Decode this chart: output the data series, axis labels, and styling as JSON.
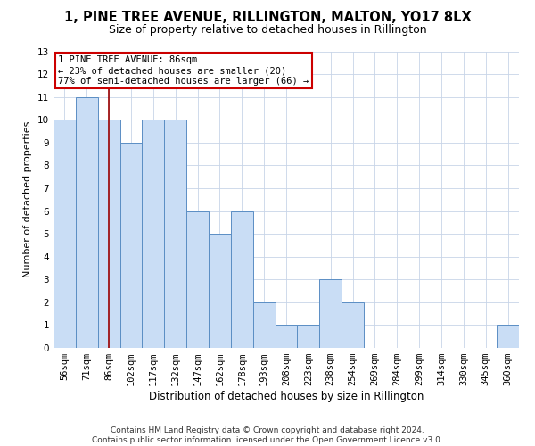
{
  "title_line1": "1, PINE TREE AVENUE, RILLINGTON, MALTON, YO17 8LX",
  "title_line2": "Size of property relative to detached houses in Rillington",
  "xlabel": "Distribution of detached houses by size in Rillington",
  "ylabel": "Number of detached properties",
  "categories": [
    "56sqm",
    "71sqm",
    "86sqm",
    "102sqm",
    "117sqm",
    "132sqm",
    "147sqm",
    "162sqm",
    "178sqm",
    "193sqm",
    "208sqm",
    "223sqm",
    "238sqm",
    "254sqm",
    "269sqm",
    "284sqm",
    "299sqm",
    "314sqm",
    "330sqm",
    "345sqm",
    "360sqm"
  ],
  "values": [
    10,
    11,
    10,
    9,
    10,
    10,
    6,
    5,
    6,
    2,
    1,
    1,
    3,
    2,
    0,
    0,
    0,
    0,
    0,
    0,
    1
  ],
  "bar_color": "#c9ddf5",
  "bar_edge_color": "#5b8ec4",
  "highlight_index": 2,
  "highlight_line_color": "#990000",
  "annotation_text": "1 PINE TREE AVENUE: 86sqm\n← 23% of detached houses are smaller (20)\n77% of semi-detached houses are larger (66) →",
  "annotation_box_color": "#ffffff",
  "annotation_box_edge_color": "#cc0000",
  "ylim": [
    0,
    13
  ],
  "yticks": [
    0,
    1,
    2,
    3,
    4,
    5,
    6,
    7,
    8,
    9,
    10,
    11,
    12,
    13
  ],
  "grid_color": "#c8d4e8",
  "background_color": "#ffffff",
  "footnote": "Contains HM Land Registry data © Crown copyright and database right 2024.\nContains public sector information licensed under the Open Government Licence v3.0.",
  "title_fontsize": 10.5,
  "subtitle_fontsize": 9,
  "xlabel_fontsize": 8.5,
  "ylabel_fontsize": 8,
  "tick_fontsize": 7.5,
  "annotation_fontsize": 7.5,
  "footnote_fontsize": 6.5
}
